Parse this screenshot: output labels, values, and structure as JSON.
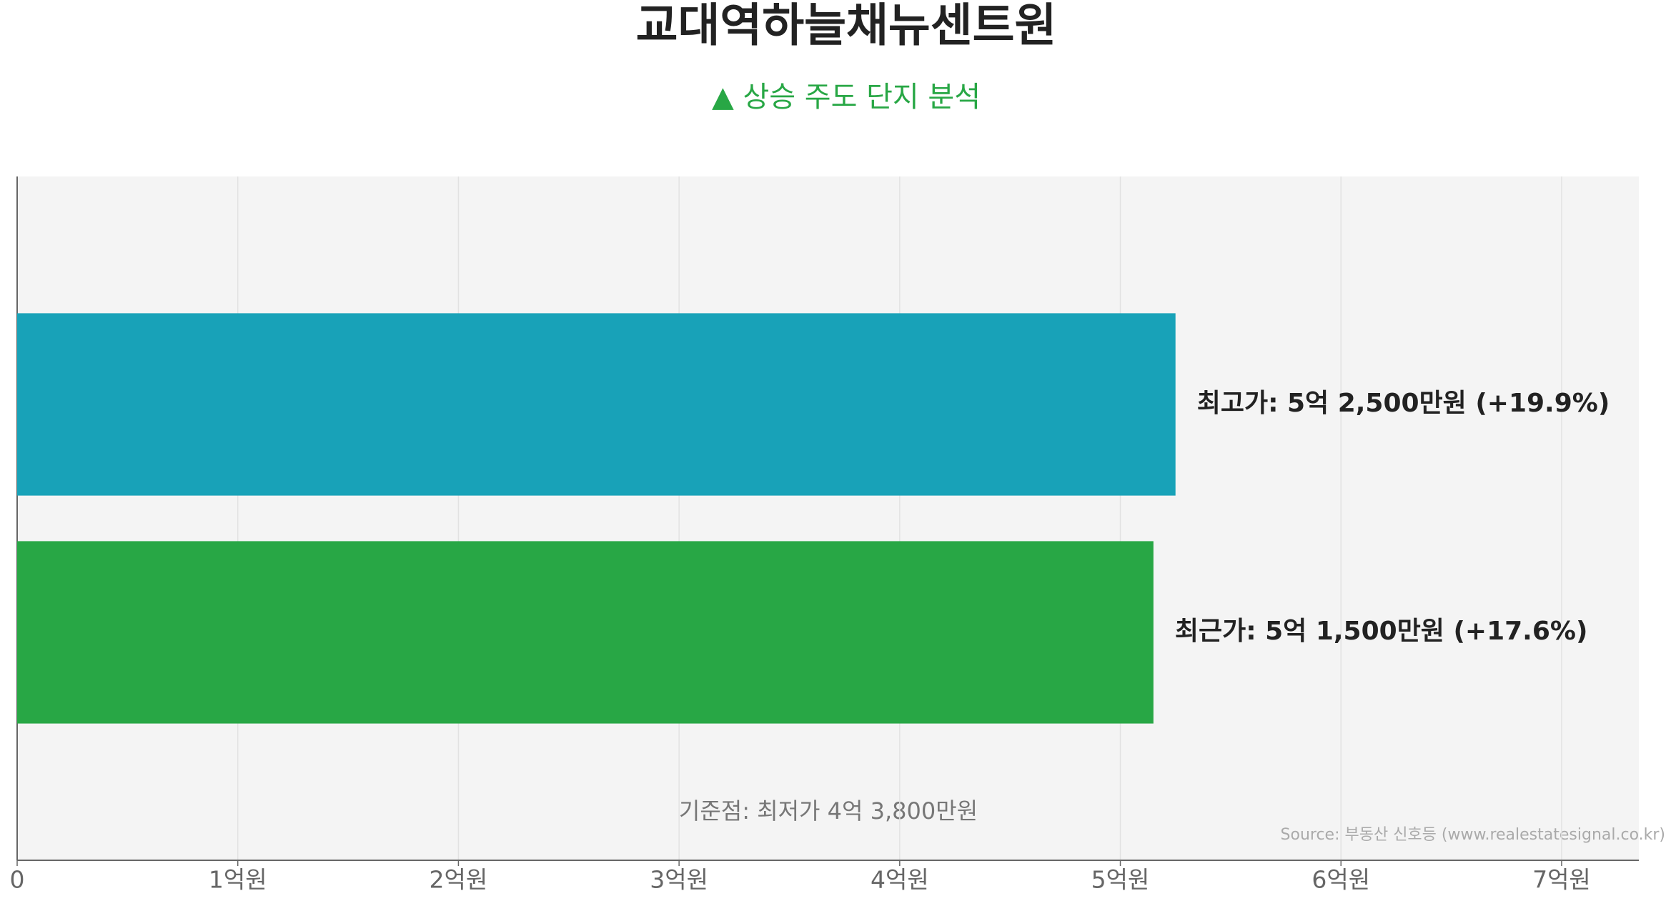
{
  "chart_data": {
    "type": "barh",
    "title": "교대역하늘채뉴센트원",
    "subtitle": "▲ 상승 주도 단지 분석",
    "values": [
      5.25,
      5.15
    ],
    "value_labels": [
      "최고가: 5억 2,500만원 (+19.9%)",
      "최근가: 5억 1,500만원 (+17.6%)"
    ],
    "colors": [
      "#18a2b8",
      "#28a745"
    ],
    "xlim": [
      0,
      7.35
    ],
    "xticks": [
      0,
      {
        "value": 1,
        "label": "1억원"
      },
      {
        "value": 2,
        "label": "2억원"
      },
      {
        "value": 3,
        "label": "3억원"
      },
      {
        "value": 4,
        "label": "4억원"
      },
      {
        "value": 5,
        "label": "5억원"
      },
      {
        "value": 6,
        "label": "6억원"
      },
      {
        "value": 7,
        "label": "7억원"
      }
    ],
    "grid": true,
    "annotation": "기준점: 최저가 4억 3,800만원",
    "source": "Source: 부동산 신호등 (www.realestatesignal.co.kr)"
  }
}
